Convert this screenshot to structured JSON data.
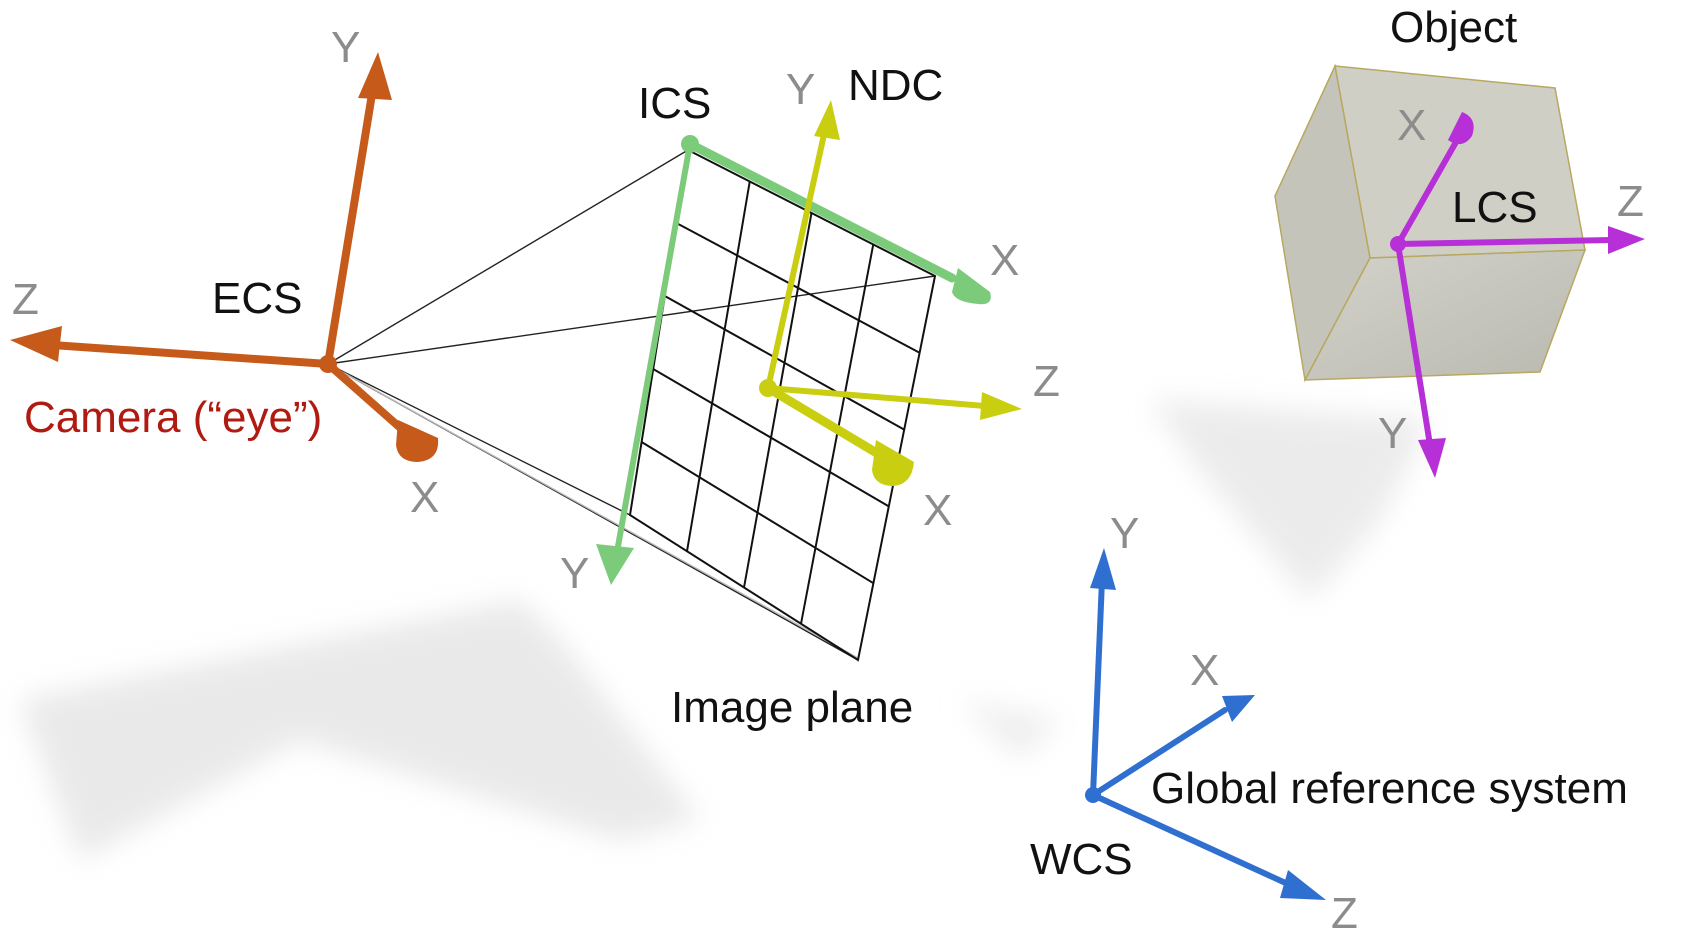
{
  "colors": {
    "ecs": "#c65a1b",
    "ics": "#7ccb7a",
    "ndc": "#c9cf10",
    "lcs": "#b72fd6",
    "wcs": "#2f6fd0",
    "camera_label": "#b01a10",
    "axis_label": "#8c8c8c",
    "grid": "#111111",
    "object_fill": "#c2c2b6",
    "object_edge": "#b8a860"
  },
  "labels": {
    "ecs": "ECS",
    "camera": "Camera (“eye”)",
    "ics": "ICS",
    "ndc": "NDC",
    "image_plane": "Image plane",
    "object": "Object",
    "lcs": "LCS",
    "global_ref": "Global reference system",
    "wcs": "WCS"
  },
  "axes": {
    "ecs": {
      "x": "X",
      "y": "Y",
      "z": "Z"
    },
    "ics": {
      "x": "X",
      "y": "Y"
    },
    "ndc": {
      "x": "X",
      "y": "Y",
      "z": "Z"
    },
    "lcs": {
      "x": "X",
      "y": "Y",
      "z": "Z"
    },
    "wcs": {
      "x": "X",
      "y": "Y",
      "z": "Z"
    }
  }
}
